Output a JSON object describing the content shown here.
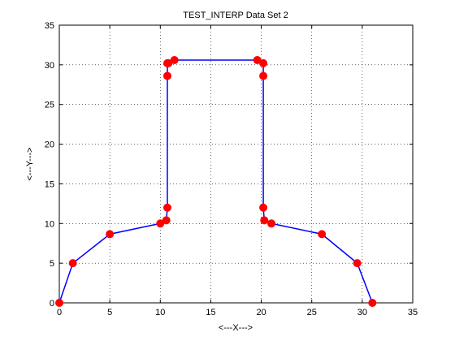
{
  "chart_data": {
    "type": "line",
    "title": "TEST_INTERP Data Set 2",
    "xlabel": "<---X--->",
    "ylabel": "<---Y--->",
    "xlim": [
      0,
      35
    ],
    "ylim": [
      0,
      35
    ],
    "xticks": [
      0,
      5,
      10,
      15,
      20,
      25,
      30,
      35
    ],
    "yticks": [
      0,
      5,
      10,
      15,
      20,
      25,
      30,
      35
    ],
    "xtick_labels": [
      "0",
      "5",
      "10",
      "15",
      "20",
      "25",
      "30",
      "35"
    ],
    "ytick_labels": [
      "0",
      "5",
      "10",
      "15",
      "20",
      "25",
      "30",
      "35"
    ],
    "grid": true,
    "series": [
      {
        "line_color": "#0000ff",
        "marker_color": "#ff0000",
        "x": [
          0.0,
          1.34,
          5.0,
          10.0,
          10.6,
          10.7,
          10.7,
          10.7,
          10.8,
          11.4,
          19.6,
          20.2,
          20.2,
          20.2,
          20.3,
          21.0,
          26.0,
          29.5,
          31.0
        ],
        "y": [
          0.0,
          5.0,
          8.66,
          10.0,
          10.4,
          12.0,
          28.6,
          30.2,
          30.2,
          30.6,
          30.6,
          30.2,
          28.6,
          12.0,
          10.4,
          10.0,
          8.66,
          5.0,
          0.0
        ]
      }
    ]
  }
}
